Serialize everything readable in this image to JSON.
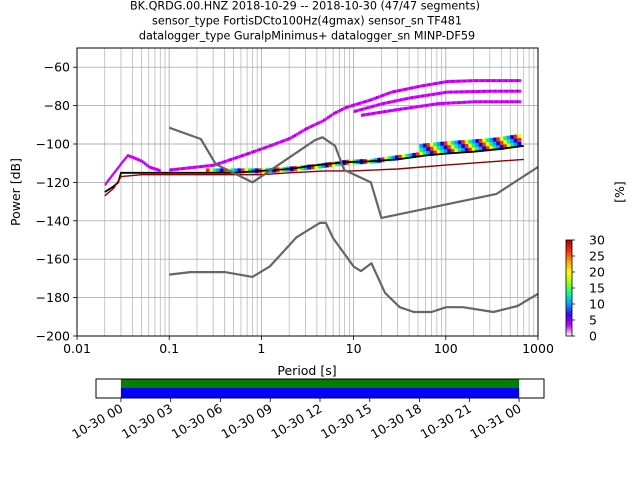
{
  "header": {
    "line1": "BK.QRDG.00.HNZ   2018-10-29 -- 2018-10-30  (47/47 segments)",
    "line2": "sensor_type FortisDCto100Hz(4gmax) sensor_sn TF481",
    "line3": "datalogger_type GuralpMinimus+ datalogger_sn MINP-DF59"
  },
  "chart_data": [
    {
      "type": "heatmap",
      "title": "BK.QRDG.00.HNZ   2018-10-29 -- 2018-10-30  (47/47 segments)",
      "xlabel": "Period [s]",
      "ylabel": "Power [dB]",
      "xscale": "log",
      "xlim": [
        0.01,
        1000
      ],
      "ylim": [
        -200,
        -50
      ],
      "xticks": [
        "0.01",
        "0.1",
        "1",
        "10",
        "100",
        "1000"
      ],
      "yticks": [
        "−200",
        "−180",
        "−160",
        "−140",
        "−120",
        "−100",
        "−80",
        "−60"
      ],
      "grid": true,
      "colorbar": {
        "label": "[%]",
        "range": [
          0,
          30
        ],
        "ticks": [
          "0",
          "5",
          "10",
          "15",
          "20",
          "25",
          "30"
        ],
        "colors": [
          "#ffffff",
          "#c800ff",
          "#3c00ff",
          "#00a0ff",
          "#00ffa0",
          "#a0ff00",
          "#ffff00",
          "#ffa000",
          "#ff2800",
          "#b40000"
        ]
      },
      "series": [
        {
          "role": "mean",
          "color": "#000000",
          "x": [
            0.02,
            0.025,
            0.028,
            0.03,
            0.05,
            0.1,
            0.2,
            0.5,
            1,
            2,
            4,
            8,
            15,
            30,
            60,
            100,
            200,
            400,
            700
          ],
          "y": [
            -125,
            -122,
            -120,
            -115,
            -115,
            -115,
            -115,
            -115,
            -114,
            -113,
            -111,
            -109.5,
            -109,
            -108,
            -106,
            -105,
            -104,
            -102.5,
            -101
          ]
        },
        {
          "role": "minimum",
          "color": "#8b0000",
          "x": [
            0.02,
            0.025,
            0.03,
            0.05,
            0.1,
            0.5,
            1,
            2,
            5,
            10,
            30,
            100,
            700
          ],
          "y": [
            -127,
            -123,
            -117,
            -116,
            -116,
            -116,
            -116,
            -115,
            -114,
            -114,
            -113,
            -111,
            -108
          ]
        },
        {
          "role": "new-high-noise-model",
          "color": "#666666",
          "x": [
            0.1,
            0.22,
            0.32,
            0.8,
            3.8,
            4.6,
            6.3,
            7.9,
            15.4,
            20,
            354.8,
            1000
          ],
          "y": [
            -91.5,
            -97.4,
            -110.5,
            -120,
            -98,
            -96.5,
            -101,
            -113.5,
            -120,
            -138.5,
            -126,
            -112
          ]
        },
        {
          "role": "new-low-noise-model",
          "color": "#666666",
          "x": [
            0.1,
            0.17,
            0.4,
            0.8,
            1.24,
            2.4,
            4.3,
            5,
            6,
            10,
            12,
            15.6,
            21.9,
            31.6,
            45,
            70,
            101,
            154,
            328,
            600,
            1000
          ],
          "y": [
            -168,
            -166.7,
            -166.7,
            -169.2,
            -163.7,
            -148.6,
            -141.1,
            -141.1,
            -149,
            -163.8,
            -166.2,
            -162.1,
            -177.5,
            -185,
            -187.5,
            -187.5,
            -185,
            -185,
            -187.5,
            -184.4,
            -178
          ]
        }
      ],
      "density_bands": [
        {
          "x": [
            0.02,
            0.03,
            0.035,
            0.04,
            0.05,
            0.06,
            0.08
          ],
          "y": [
            -121,
            -110,
            -106,
            -107,
            -109,
            -112,
            -114
          ],
          "level": "low"
        },
        {
          "x": [
            0.1,
            0.3,
            0.7,
            1.2,
            2,
            3,
            4.5,
            6,
            8
          ],
          "y": [
            -113.5,
            -111,
            -105,
            -101,
            -97,
            -92,
            -88,
            -84,
            -81
          ],
          "level": "low"
        },
        {
          "x": [
            8,
            15,
            25,
            50,
            100,
            200,
            650
          ],
          "y": [
            -81,
            -77,
            -73,
            -70,
            -67.5,
            -67,
            -67
          ],
          "level": "low"
        },
        {
          "x": [
            10,
            20,
            40,
            100,
            300,
            650
          ],
          "y": [
            -83,
            -79,
            -76,
            -73,
            -72.5,
            -72.5
          ],
          "level": "low"
        },
        {
          "x": [
            12,
            30,
            80,
            200,
            650
          ],
          "y": [
            -85,
            -82,
            -79,
            -78,
            -78
          ],
          "level": "low"
        },
        {
          "x": [
            0.25,
            0.6,
            1,
            2,
            4,
            8,
            15,
            30,
            60,
            100,
            200,
            350,
            650
          ],
          "y": [
            -114,
            -114,
            -114,
            -113,
            -111.5,
            -109.5,
            -109,
            -107,
            -105,
            -104,
            -103,
            -102,
            -100
          ],
          "level": "high"
        }
      ]
    },
    {
      "type": "bar",
      "title": "",
      "xlabel": "",
      "xticks": [
        "10-30 00",
        "10-30 03",
        "10-30 06",
        "10-30 09",
        "10-30 12",
        "10-30 15",
        "10-30 18",
        "10-30 21",
        "10-31 00"
      ],
      "xlim": [
        "10-29 22:30",
        "10-31 01:30"
      ],
      "bars": [
        {
          "color": "#008000",
          "from": "10-30 00:00",
          "to": "10-31 00:00"
        },
        {
          "color": "#0000ff",
          "from": "10-30 00:00",
          "to": "10-31 00:00"
        }
      ]
    }
  ]
}
